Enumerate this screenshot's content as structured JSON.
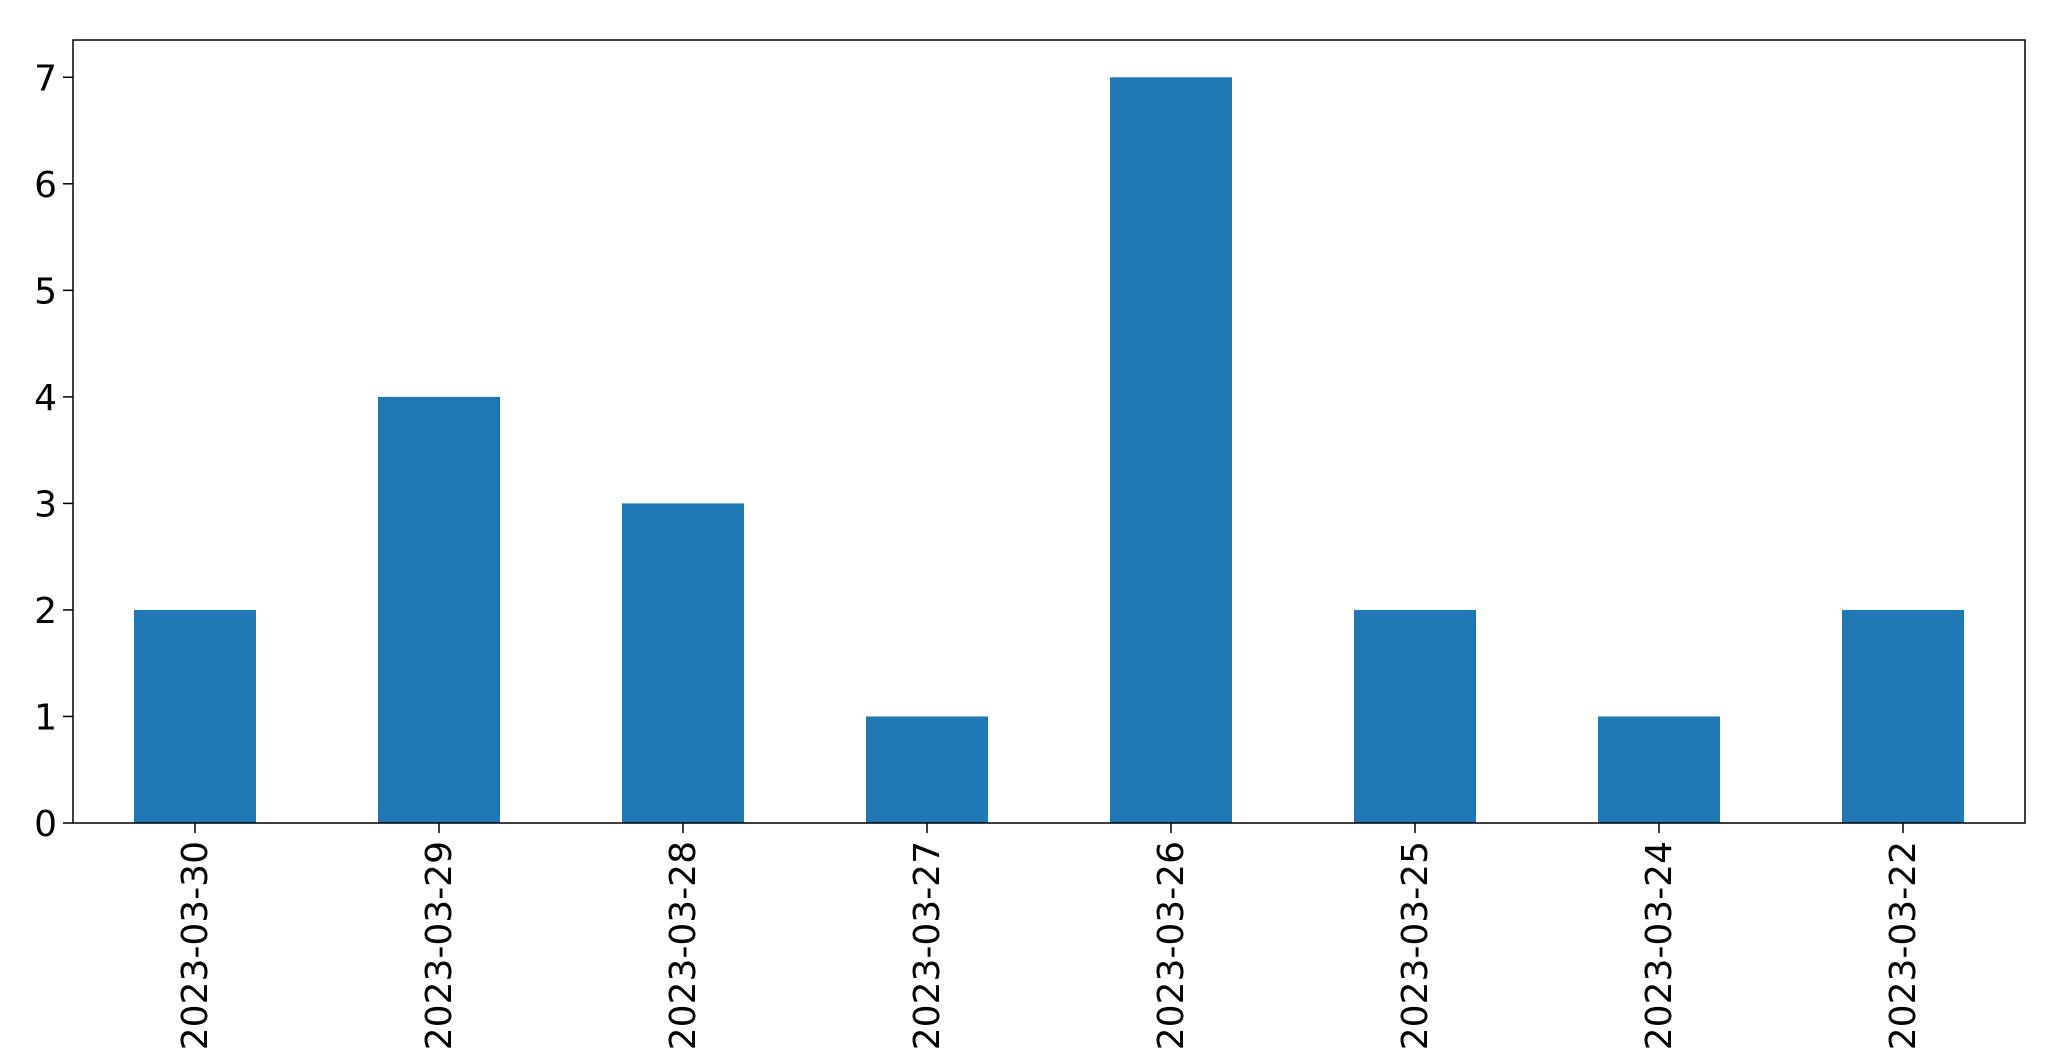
{
  "chart_data": {
    "type": "bar",
    "categories": [
      "2023-03-30",
      "2023-03-29",
      "2023-03-28",
      "2023-03-27",
      "2023-03-26",
      "2023-03-25",
      "2023-03-24",
      "2023-03-22"
    ],
    "values": [
      2,
      4,
      3,
      1,
      7,
      2,
      1,
      2
    ],
    "title": "",
    "xlabel": "",
    "ylabel": "",
    "ylim": [
      0,
      7.35
    ],
    "yticks": [
      0,
      1,
      2,
      3,
      4,
      5,
      6,
      7
    ],
    "grid": false,
    "legend": "none",
    "bar_color": "#1f77b4"
  }
}
